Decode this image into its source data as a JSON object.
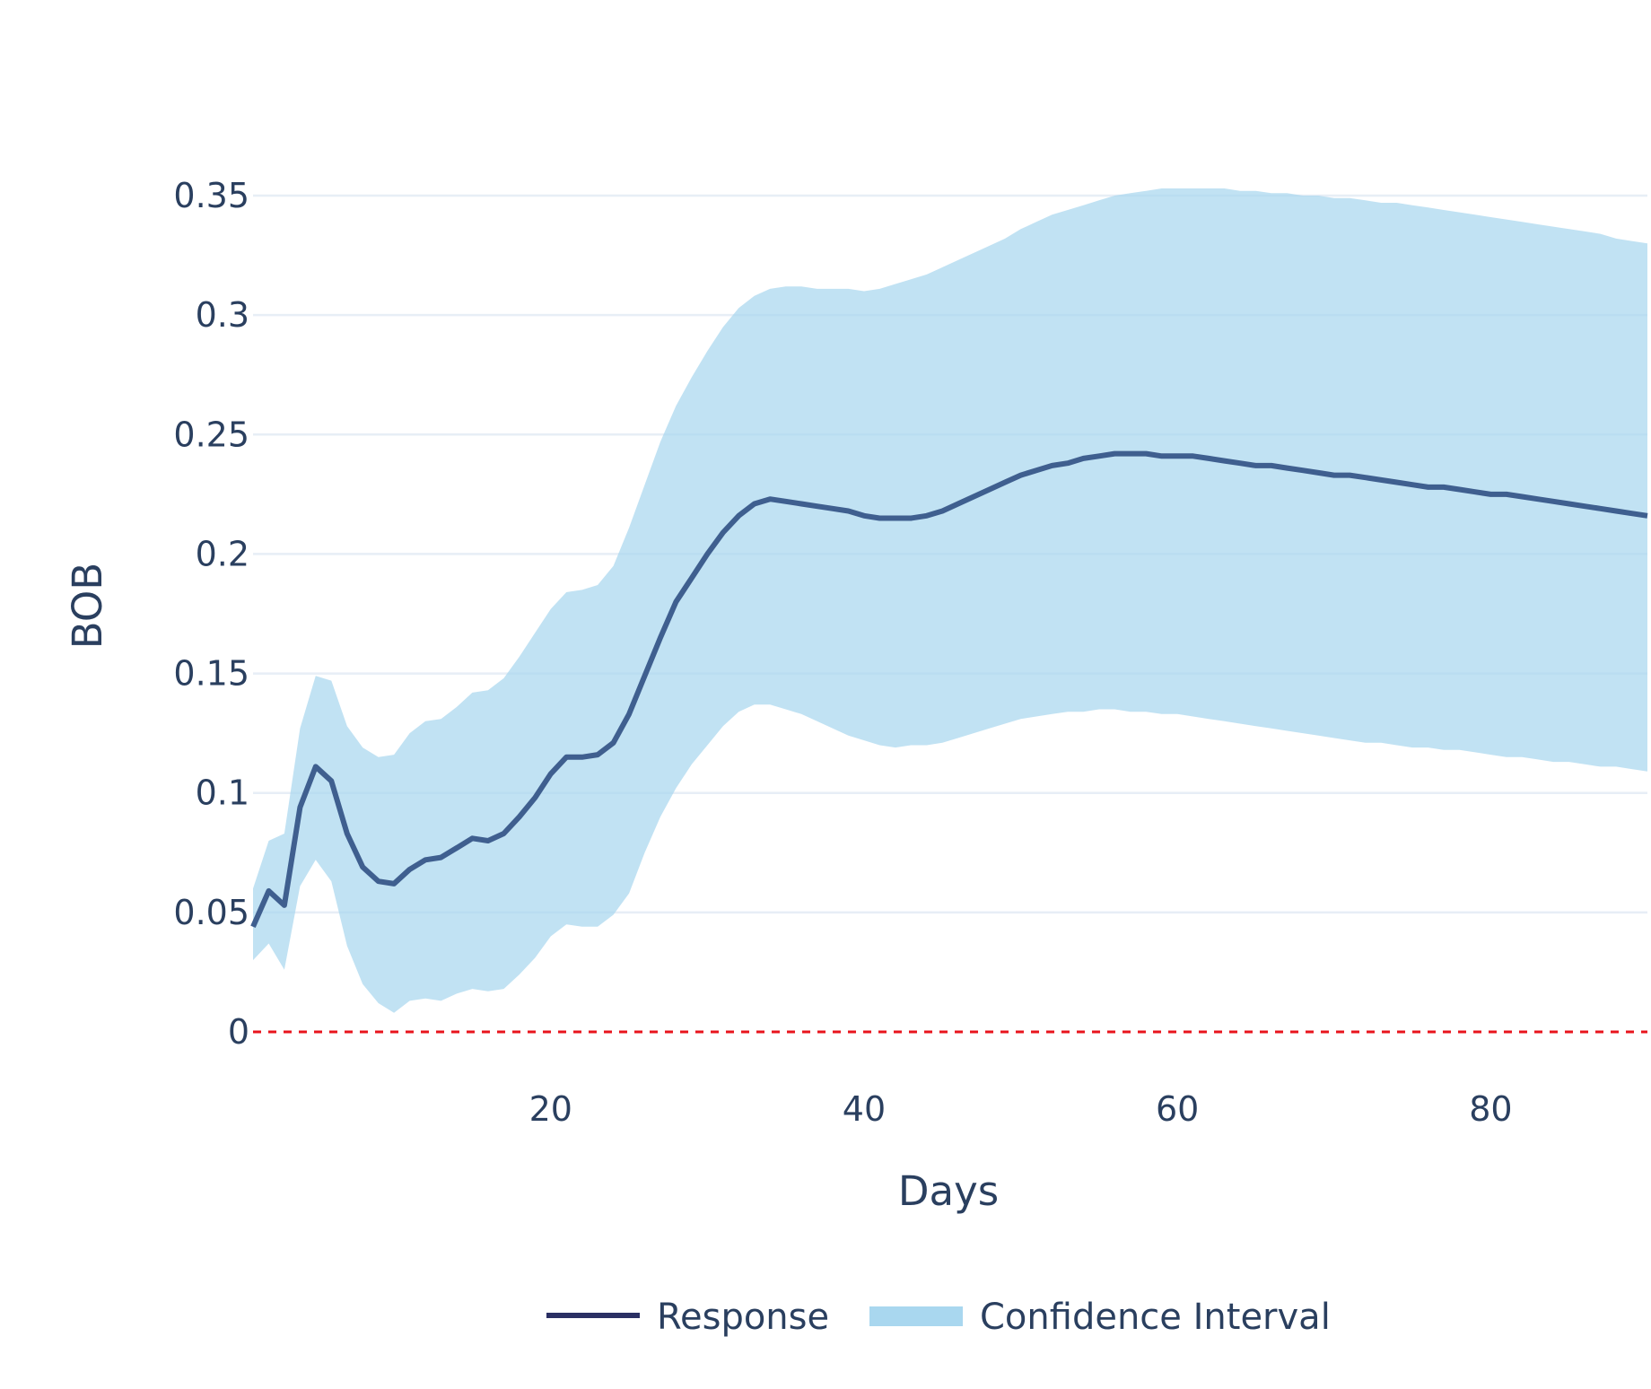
{
  "chart_data": {
    "type": "line",
    "title": "",
    "xlabel": "Days",
    "ylabel": "BOB",
    "xlim": [
      1,
      90
    ],
    "ylim": [
      0,
      0.35
    ],
    "x_ticks": [
      20,
      40,
      60,
      80
    ],
    "y_ticks": [
      0,
      0.05,
      0.1,
      0.15,
      0.2,
      0.25,
      0.3,
      0.35
    ],
    "y_tick_labels": [
      "0",
      "0.05",
      "0.1",
      "0.15",
      "0.2",
      "0.25",
      "0.3",
      "0.35"
    ],
    "grid": "horizontal",
    "zero_line": {
      "value": 0,
      "style": "dashed",
      "color": "#e8141c"
    },
    "legend": {
      "placement": "bottom-center",
      "items": [
        "Response",
        "Confidence Interval"
      ]
    },
    "colors": {
      "response": "#3f5f8f",
      "response_legend": "#2a2f63",
      "band": "#a9d7ef",
      "grid": "#e7eef6",
      "text": "#2a3f5f"
    },
    "series": [
      {
        "name": "Response",
        "x": [
          1,
          2,
          3,
          4,
          5,
          6,
          7,
          8,
          9,
          10,
          11,
          12,
          13,
          14,
          15,
          16,
          17,
          18,
          19,
          20,
          21,
          22,
          23,
          24,
          25,
          26,
          27,
          28,
          29,
          30,
          31,
          32,
          33,
          34,
          35,
          36,
          37,
          38,
          39,
          40,
          41,
          42,
          43,
          44,
          45,
          46,
          47,
          48,
          49,
          50,
          51,
          52,
          53,
          54,
          55,
          56,
          57,
          58,
          59,
          60,
          61,
          62,
          63,
          64,
          65,
          66,
          67,
          68,
          69,
          70,
          71,
          72,
          73,
          74,
          75,
          76,
          77,
          78,
          79,
          80,
          81,
          82,
          83,
          84,
          85,
          86,
          87,
          88,
          89,
          90
        ],
        "y": [
          0.044,
          0.059,
          0.053,
          0.094,
          0.111,
          0.105,
          0.083,
          0.069,
          0.063,
          0.062,
          0.068,
          0.072,
          0.073,
          0.077,
          0.081,
          0.08,
          0.083,
          0.09,
          0.098,
          0.108,
          0.115,
          0.115,
          0.116,
          0.121,
          0.133,
          0.149,
          0.165,
          0.18,
          0.19,
          0.2,
          0.209,
          0.216,
          0.221,
          0.223,
          0.222,
          0.221,
          0.22,
          0.219,
          0.218,
          0.216,
          0.215,
          0.215,
          0.215,
          0.216,
          0.218,
          0.221,
          0.224,
          0.227,
          0.23,
          0.233,
          0.235,
          0.237,
          0.238,
          0.24,
          0.241,
          0.242,
          0.242,
          0.242,
          0.241,
          0.241,
          0.241,
          0.24,
          0.239,
          0.238,
          0.237,
          0.237,
          0.236,
          0.235,
          0.234,
          0.233,
          0.233,
          0.232,
          0.231,
          0.23,
          0.229,
          0.228,
          0.228,
          0.227,
          0.226,
          0.225,
          0.225,
          0.224,
          0.223,
          0.222,
          0.221,
          0.22,
          0.219,
          0.218,
          0.217,
          0.216
        ]
      },
      {
        "name": "Confidence Interval",
        "x": [
          1,
          2,
          3,
          4,
          5,
          6,
          7,
          8,
          9,
          10,
          11,
          12,
          13,
          14,
          15,
          16,
          17,
          18,
          19,
          20,
          21,
          22,
          23,
          24,
          25,
          26,
          27,
          28,
          29,
          30,
          31,
          32,
          33,
          34,
          35,
          36,
          37,
          38,
          39,
          40,
          41,
          42,
          43,
          44,
          45,
          46,
          47,
          48,
          49,
          50,
          51,
          52,
          53,
          54,
          55,
          56,
          57,
          58,
          59,
          60,
          61,
          62,
          63,
          64,
          65,
          66,
          67,
          68,
          69,
          70,
          71,
          72,
          73,
          74,
          75,
          76,
          77,
          78,
          79,
          80,
          81,
          82,
          83,
          84,
          85,
          86,
          87,
          88,
          89,
          90
        ],
        "lower": [
          0.03,
          0.037,
          0.026,
          0.061,
          0.072,
          0.063,
          0.036,
          0.02,
          0.012,
          0.008,
          0.013,
          0.014,
          0.013,
          0.016,
          0.018,
          0.017,
          0.018,
          0.024,
          0.031,
          0.04,
          0.045,
          0.044,
          0.044,
          0.049,
          0.058,
          0.075,
          0.09,
          0.102,
          0.112,
          0.12,
          0.128,
          0.134,
          0.137,
          0.137,
          0.135,
          0.133,
          0.13,
          0.127,
          0.124,
          0.122,
          0.12,
          0.119,
          0.12,
          0.12,
          0.121,
          0.123,
          0.125,
          0.127,
          0.129,
          0.131,
          0.132,
          0.133,
          0.134,
          0.134,
          0.135,
          0.135,
          0.134,
          0.134,
          0.133,
          0.133,
          0.132,
          0.131,
          0.13,
          0.129,
          0.128,
          0.127,
          0.126,
          0.125,
          0.124,
          0.123,
          0.122,
          0.121,
          0.121,
          0.12,
          0.119,
          0.119,
          0.118,
          0.118,
          0.117,
          0.116,
          0.115,
          0.115,
          0.114,
          0.113,
          0.113,
          0.112,
          0.111,
          0.111,
          0.11,
          0.109
        ],
        "upper": [
          0.06,
          0.08,
          0.083,
          0.127,
          0.149,
          0.147,
          0.128,
          0.119,
          0.115,
          0.116,
          0.125,
          0.13,
          0.131,
          0.136,
          0.142,
          0.143,
          0.148,
          0.157,
          0.167,
          0.177,
          0.184,
          0.185,
          0.187,
          0.195,
          0.211,
          0.229,
          0.247,
          0.262,
          0.274,
          0.285,
          0.295,
          0.303,
          0.308,
          0.311,
          0.312,
          0.312,
          0.311,
          0.311,
          0.311,
          0.31,
          0.311,
          0.313,
          0.315,
          0.317,
          0.32,
          0.323,
          0.326,
          0.329,
          0.332,
          0.336,
          0.339,
          0.342,
          0.344,
          0.346,
          0.348,
          0.35,
          0.351,
          0.352,
          0.353,
          0.353,
          0.353,
          0.353,
          0.353,
          0.352,
          0.352,
          0.351,
          0.351,
          0.35,
          0.35,
          0.349,
          0.349,
          0.348,
          0.347,
          0.347,
          0.346,
          0.345,
          0.344,
          0.343,
          0.342,
          0.341,
          0.34,
          0.339,
          0.338,
          0.337,
          0.336,
          0.335,
          0.334,
          0.332,
          0.331,
          0.33
        ]
      }
    ]
  }
}
